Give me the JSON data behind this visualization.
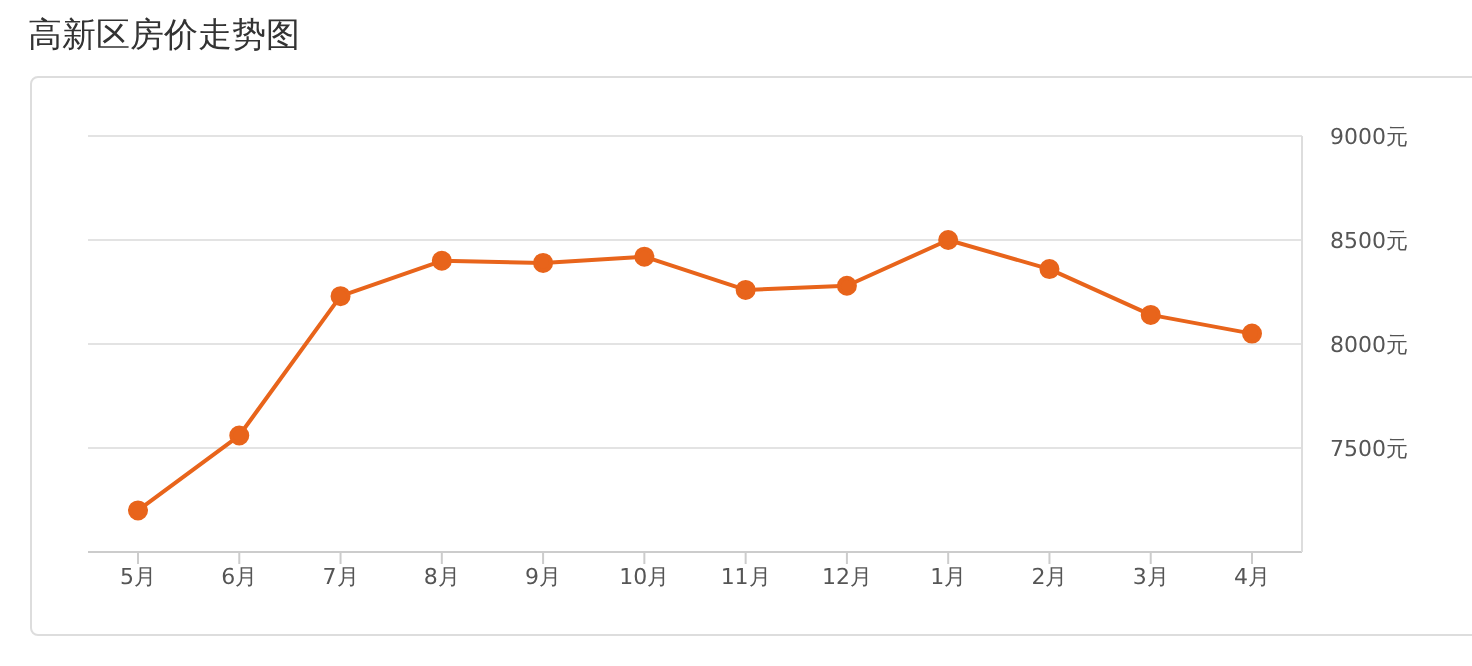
{
  "chart_data": {
    "type": "line",
    "title": "高新区房价走势图",
    "categories": [
      "5月",
      "6月",
      "7月",
      "8月",
      "9月",
      "10月",
      "11月",
      "12月",
      "1月",
      "2月",
      "3月",
      "4月"
    ],
    "series": [
      {
        "color": "#e8641b",
        "values": [
          7200,
          7560,
          8230,
          8400,
          8390,
          8420,
          8260,
          8280,
          8500,
          8360,
          8140,
          8050
        ]
      }
    ],
    "ylim": [
      7000,
      9000
    ],
    "yticks": [
      {
        "value": 7000,
        "label": null
      },
      {
        "value": 7500,
        "label": "7500元"
      },
      {
        "value": 8000,
        "label": "8000元"
      },
      {
        "value": 8500,
        "label": "8500元"
      },
      {
        "value": 9000,
        "label": "9000元"
      }
    ],
    "grid": "y",
    "legend": false,
    "marker": "circle",
    "line_style": "solid"
  }
}
